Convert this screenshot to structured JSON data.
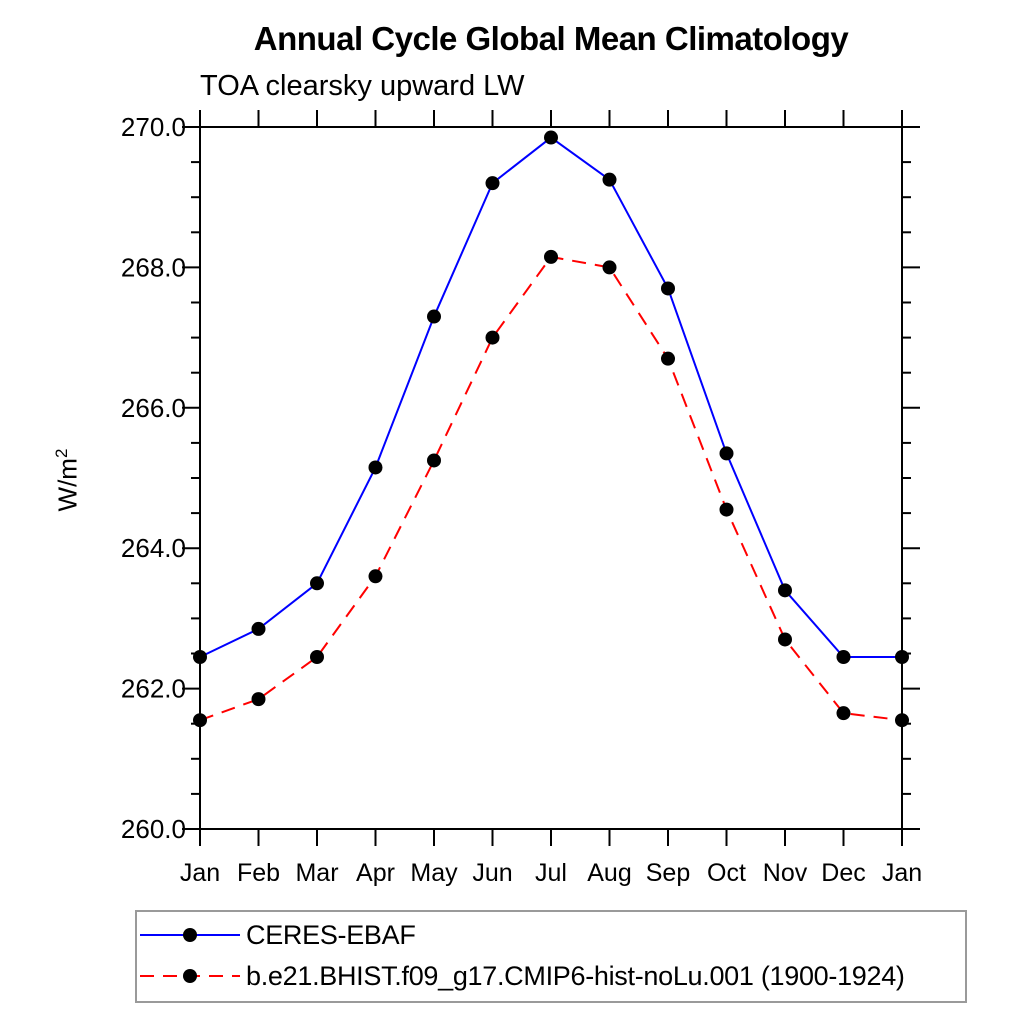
{
  "page_title": "Annual Cycle Global Mean Climatology",
  "chart_data": {
    "type": "line",
    "title": "Annual Cycle Global Mean Climatology",
    "subtitle": "TOA clearsky upward LW",
    "ylabel": "W/m",
    "ylabel_superscript": "2",
    "xlabel": "",
    "x_categories": [
      "Jan",
      "Feb",
      "Mar",
      "Apr",
      "May",
      "Jun",
      "Jul",
      "Aug",
      "Sep",
      "Oct",
      "Nov",
      "Dec",
      "Jan"
    ],
    "ylim": [
      260.0,
      270.0
    ],
    "ytick_major_interval": 2.0,
    "ytick_minor_interval": 0.5,
    "ytick_labels": [
      "260.0",
      "262.0",
      "264.0",
      "266.0",
      "268.0",
      "270.0"
    ],
    "grid": false,
    "legend_position": "bottom-left-box",
    "axis_color": "#000000",
    "marker_color": "#000000",
    "series": [
      {
        "name": "CERES-EBAF",
        "color": "#0000ff",
        "line_style": "solid",
        "marker": "filled-circle",
        "values": [
          262.45,
          262.85,
          263.5,
          265.15,
          267.3,
          269.2,
          269.85,
          269.25,
          267.7,
          265.35,
          263.4,
          262.45,
          262.45
        ]
      },
      {
        "name": "b.e21.BHIST.f09_g17.CMIP6-hist-noLu.001 (1900-1924)",
        "color": "#ff0000",
        "line_style": "dashed",
        "marker": "filled-circle",
        "values": [
          261.55,
          261.85,
          262.45,
          263.6,
          265.25,
          267.0,
          268.15,
          268.0,
          266.7,
          264.55,
          262.7,
          261.65,
          261.55
        ]
      }
    ]
  }
}
